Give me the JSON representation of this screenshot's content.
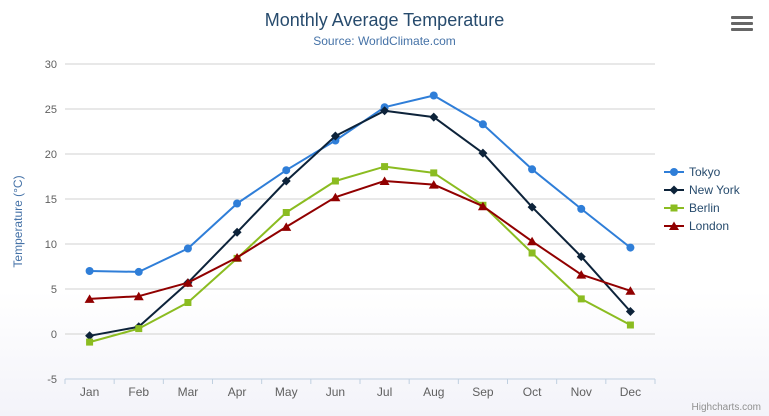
{
  "chart_data": {
    "type": "line",
    "title": "Monthly Average Temperature",
    "subtitle": "Source: WorldClimate.com",
    "ylabel": "Temperature (°C)",
    "ylim": [
      -5,
      30
    ],
    "yticks": [
      -5,
      0,
      5,
      10,
      15,
      20,
      25,
      30
    ],
    "grid": true,
    "legend_position": "right",
    "categories": [
      "Jan",
      "Feb",
      "Mar",
      "Apr",
      "May",
      "Jun",
      "Jul",
      "Aug",
      "Sep",
      "Oct",
      "Nov",
      "Dec"
    ],
    "series": [
      {
        "name": "Tokyo",
        "color": "#2f7ed8",
        "marker": "circle",
        "values": [
          7.0,
          6.9,
          9.5,
          14.5,
          18.2,
          21.5,
          25.2,
          26.5,
          23.3,
          18.3,
          13.9,
          9.6
        ]
      },
      {
        "name": "New York",
        "color": "#0d233a",
        "marker": "diamond",
        "values": [
          -0.2,
          0.8,
          5.7,
          11.3,
          17.0,
          22.0,
          24.8,
          24.1,
          20.1,
          14.1,
          8.6,
          2.5
        ]
      },
      {
        "name": "Berlin",
        "color": "#8bbc21",
        "marker": "square",
        "values": [
          -0.9,
          0.6,
          3.5,
          8.4,
          13.5,
          17.0,
          18.6,
          17.9,
          14.3,
          9.0,
          3.9,
          1.0
        ]
      },
      {
        "name": "London",
        "color": "#910000",
        "marker": "triangle",
        "values": [
          3.9,
          4.2,
          5.7,
          8.5,
          11.9,
          15.2,
          17.0,
          16.6,
          14.2,
          10.3,
          6.6,
          4.8
        ]
      }
    ]
  },
  "credits": "Highcharts.com",
  "export_menu_icon": "hamburger-icon",
  "colors": {
    "title": "#274b6d",
    "subtitle": "#4572A7",
    "axis_label": "#606060",
    "axis_title": "#4572A7",
    "legend_text": "#274b6d",
    "gridline": "#d0d0d0",
    "axis_line": "#C0D0E0"
  }
}
